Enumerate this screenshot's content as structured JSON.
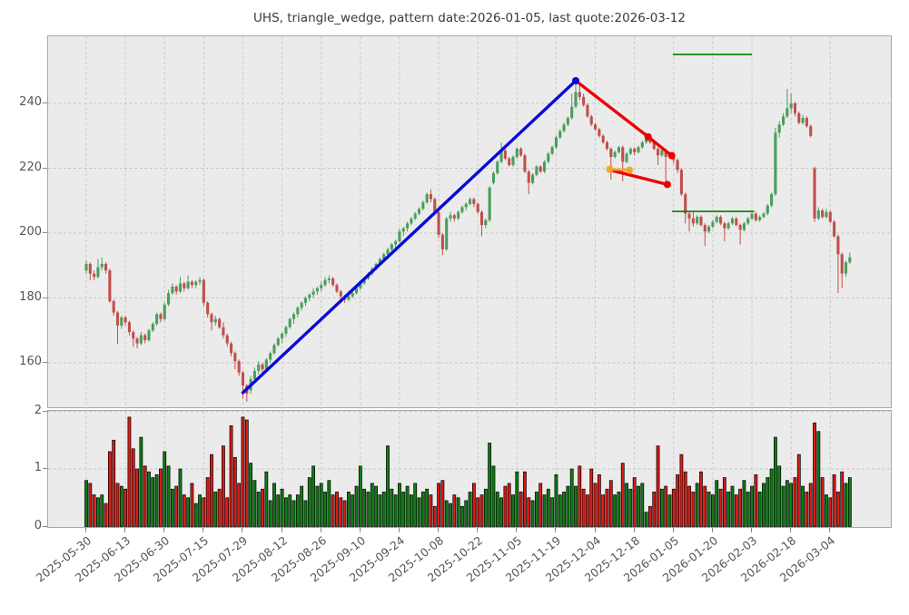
{
  "title": "UHS, triangle_wedge, pattern date:2026-01-05, last quote:2026-03-12",
  "colors": {
    "figure_bg": "#ffffff",
    "plot_bg": "#ebebeb",
    "grid": "#c6c6c6",
    "spine": "#a8a8a8",
    "tick_label": "#555555",
    "candle_up": "#4a9e5c",
    "candle_down": "#c14f4b",
    "volume_up": "#0c7d12",
    "volume_down": "#dd1a14",
    "volume_edge": "#000000",
    "trend_blue": "#0a0ad8",
    "pattern_red": "#ee0000",
    "pivot_orange": "#f5a623",
    "level_green": "#007f00"
  },
  "chart_data": {
    "type": "candlestick+volume",
    "title": "UHS, triangle_wedge, pattern date:2026-01-05, last quote:2026-03-12",
    "grid": "dashed",
    "price_axis": {
      "ticks": [
        240,
        220,
        200,
        180,
        160
      ],
      "range": [
        145.7,
        260.7
      ]
    },
    "volume_axis": {
      "ticks": [
        2,
        1,
        0
      ],
      "range": [
        0,
        2.04
      ]
    },
    "x_tick_labels": [
      "2025-05-30",
      "2025-06-13",
      "2025-06-30",
      "2025-07-15",
      "2025-07-29",
      "2025-08-12",
      "2025-08-26",
      "2025-09-10",
      "2025-09-24",
      "2025-10-08",
      "2025-10-22",
      "2025-11-05",
      "2025-11-19",
      "2025-12-04",
      "2025-12-18",
      "2026-01-05",
      "2026-01-20",
      "2026-02-03",
      "2026-02-18",
      "2026-03-04"
    ],
    "days_per_tick": 10,
    "candles": [
      [
        188.5,
        191.5,
        187.5,
        190.5
      ],
      [
        190.5,
        191,
        185.5,
        187.5
      ],
      [
        187.5,
        188.5,
        185.5,
        186.5
      ],
      [
        186.5,
        192,
        186,
        189.5
      ],
      [
        189.5,
        192.5,
        188.5,
        190.5
      ],
      [
        190.5,
        191,
        187.5,
        188.5
      ],
      [
        188.5,
        189,
        178.5,
        179
      ],
      [
        179,
        179.5,
        174.5,
        175.5
      ],
      [
        175.5,
        176,
        165.8,
        171.5
      ],
      [
        171.5,
        174.5,
        170.5,
        174
      ],
      [
        174,
        174.5,
        171.5,
        172.5
      ],
      [
        172.5,
        173,
        168.5,
        169.5
      ],
      [
        169.5,
        170,
        165,
        167.5
      ],
      [
        167.5,
        168,
        164.5,
        166
      ],
      [
        166,
        169.5,
        165.5,
        168.5
      ],
      [
        168.5,
        169,
        166,
        167
      ],
      [
        167,
        170.5,
        166.5,
        170
      ],
      [
        170,
        172.5,
        169.5,
        172
      ],
      [
        172,
        175.5,
        171.5,
        175
      ],
      [
        175,
        175.5,
        172.5,
        173.5
      ],
      [
        173.5,
        178.5,
        173,
        178
      ],
      [
        178,
        182.5,
        177.5,
        181.5
      ],
      [
        181.5,
        184.5,
        181,
        183.5
      ],
      [
        183.5,
        184,
        181,
        182
      ],
      [
        182,
        186.5,
        181.5,
        184.5
      ],
      [
        184.5,
        185,
        182,
        183
      ],
      [
        183,
        187,
        182.5,
        185
      ],
      [
        185,
        185.5,
        183,
        184
      ],
      [
        184,
        185.5,
        183,
        185
      ],
      [
        185,
        186.5,
        184,
        185.5
      ],
      [
        185.5,
        186,
        177.5,
        178.5
      ],
      [
        178.5,
        179,
        174,
        175
      ],
      [
        175,
        175.5,
        170,
        172.5
      ],
      [
        172.5,
        174.5,
        171.5,
        173.5
      ],
      [
        173.5,
        174,
        170.5,
        171
      ],
      [
        171,
        172.5,
        167.5,
        168.5
      ],
      [
        168.5,
        169,
        165,
        166
      ],
      [
        166,
        166.5,
        162,
        163
      ],
      [
        163,
        163.5,
        158,
        160.5
      ],
      [
        160.5,
        161,
        156,
        157
      ],
      [
        157,
        157.5,
        149,
        153
      ],
      [
        153,
        153.5,
        148,
        150.5
      ],
      [
        151.5,
        156,
        150.5,
        155
      ],
      [
        155,
        158.5,
        154,
        157.5
      ],
      [
        157.5,
        160.5,
        156.5,
        159.5
      ],
      [
        159.5,
        160,
        156.5,
        158
      ],
      [
        158,
        161.5,
        157.5,
        161
      ],
      [
        161,
        163.5,
        160,
        163
      ],
      [
        163,
        166,
        162.5,
        165.5
      ],
      [
        165.5,
        168,
        165,
        167.5
      ],
      [
        167.5,
        169.5,
        166,
        169
      ],
      [
        169,
        171.5,
        168,
        171
      ],
      [
        171,
        174,
        170.5,
        173.5
      ],
      [
        173.5,
        175.5,
        172,
        175
      ],
      [
        175,
        177.5,
        174,
        177
      ],
      [
        177,
        179,
        176,
        178.5
      ],
      [
        178.5,
        180.5,
        177.5,
        180
      ],
      [
        180,
        181.5,
        179,
        181
      ],
      [
        181,
        183,
        180,
        182
      ],
      [
        182,
        183.5,
        181,
        183
      ],
      [
        183,
        185,
        182,
        184
      ],
      [
        184,
        186.5,
        183.5,
        185.5
      ],
      [
        185.5,
        187,
        184.5,
        186
      ],
      [
        186,
        186.5,
        183.5,
        184
      ],
      [
        184,
        184.5,
        181.5,
        182
      ],
      [
        182,
        182.5,
        179.5,
        180.5
      ],
      [
        180.5,
        181,
        178.5,
        179.5
      ],
      [
        179.5,
        181.5,
        179,
        180.5
      ],
      [
        180.5,
        182.5,
        180,
        181.5
      ],
      [
        181.5,
        183.5,
        181,
        183
      ],
      [
        183,
        185.5,
        182.5,
        184.5
      ],
      [
        184.5,
        186.5,
        184,
        186
      ],
      [
        186,
        188,
        185.5,
        187.5
      ],
      [
        187.5,
        189.5,
        187,
        189
      ],
      [
        189,
        191,
        188.5,
        190.5
      ],
      [
        190.5,
        192.5,
        190,
        192
      ],
      [
        192,
        194,
        191.5,
        193.5
      ],
      [
        193.5,
        195.5,
        193,
        195
      ],
      [
        195,
        197,
        194.5,
        196.5
      ],
      [
        196.5,
        198,
        195.5,
        197.5
      ],
      [
        197.5,
        201.5,
        197,
        200.5
      ],
      [
        200.5,
        202,
        199,
        201.5
      ],
      [
        201.5,
        203.5,
        200.5,
        203
      ],
      [
        203,
        205,
        202.5,
        204.5
      ],
      [
        204.5,
        206.5,
        204,
        206
      ],
      [
        206,
        208,
        205.5,
        207.5
      ],
      [
        207.5,
        210,
        207,
        209.5
      ],
      [
        209.5,
        212.5,
        209,
        212
      ],
      [
        212,
        213.5,
        209.5,
        210.5
      ],
      [
        210.5,
        211,
        205.5,
        206.5
      ],
      [
        206.5,
        207,
        198.5,
        199.5
      ],
      [
        199.5,
        200,
        193.2,
        195
      ],
      [
        195,
        205,
        194.5,
        204.5
      ],
      [
        204.5,
        206.5,
        203.5,
        205.5
      ],
      [
        205.5,
        206,
        203.5,
        204.5
      ],
      [
        204.5,
        207,
        204,
        206.5
      ],
      [
        206.5,
        208.5,
        206,
        208
      ],
      [
        208,
        209.5,
        207,
        209
      ],
      [
        209,
        211,
        208.5,
        210.5
      ],
      [
        210.5,
        211,
        208,
        209
      ],
      [
        209,
        209.5,
        206,
        206.5
      ],
      [
        206.5,
        207,
        199,
        202.5
      ],
      [
        202.5,
        204.5,
        201.5,
        204
      ],
      [
        204,
        214.5,
        203.5,
        214
      ],
      [
        215.5,
        219,
        215,
        218.5
      ],
      [
        218.5,
        222.5,
        218,
        222
      ],
      [
        222,
        228,
        221.5,
        225.5
      ],
      [
        225.5,
        226,
        222.5,
        223
      ],
      [
        223,
        223.5,
        220.5,
        221
      ],
      [
        221,
        224,
        220.5,
        223.5
      ],
      [
        223.5,
        226.5,
        223,
        226
      ],
      [
        226,
        226.5,
        223.5,
        224
      ],
      [
        224,
        224.5,
        218.5,
        219
      ],
      [
        219,
        219.5,
        212,
        215.5
      ],
      [
        215.5,
        218.5,
        215,
        218
      ],
      [
        218,
        221,
        217.5,
        220.5
      ],
      [
        220.5,
        221,
        218.5,
        219
      ],
      [
        219,
        222.5,
        218.5,
        222
      ],
      [
        222,
        225,
        221.5,
        224.5
      ],
      [
        224.5,
        227,
        224,
        226.5
      ],
      [
        226.5,
        230,
        226,
        229.5
      ],
      [
        229.5,
        232,
        229,
        231.5
      ],
      [
        231.5,
        234,
        231,
        233.5
      ],
      [
        233.5,
        236,
        233,
        235.5
      ],
      [
        235.5,
        243,
        235,
        239
      ],
      [
        239,
        247,
        238.5,
        243.5
      ],
      [
        243.5,
        246,
        241,
        242
      ],
      [
        242,
        243,
        239,
        239.5
      ],
      [
        239.5,
        240,
        235.5,
        236
      ],
      [
        236,
        236.5,
        233,
        233.5
      ],
      [
        233.5,
        234,
        231.5,
        232
      ],
      [
        232,
        232.5,
        229.5,
        230
      ],
      [
        230,
        230.5,
        227.5,
        228
      ],
      [
        228,
        228.5,
        225.5,
        226
      ],
      [
        226,
        226.5,
        216.5,
        223.5
      ],
      [
        223.5,
        225.5,
        223,
        225
      ],
      [
        225,
        227,
        224.5,
        226.5
      ],
      [
        226.5,
        227,
        216,
        222
      ],
      [
        222,
        225,
        221.5,
        224.5
      ],
      [
        224.5,
        226.5,
        224,
        226
      ],
      [
        226,
        226.5,
        224,
        225
      ],
      [
        225,
        227,
        224.5,
        226.5
      ],
      [
        226.5,
        228.5,
        226,
        228
      ],
      [
        228,
        231,
        227.5,
        229.5
      ],
      [
        229.5,
        230,
        227.5,
        228
      ],
      [
        228,
        228.5,
        225.5,
        226
      ],
      [
        226,
        226.5,
        221,
        224
      ],
      [
        224,
        226,
        223.5,
        225.5
      ],
      [
        225.5,
        226,
        215.5,
        223.5
      ],
      [
        223.5,
        225,
        223,
        224.5
      ],
      [
        224.5,
        225,
        221.5,
        222.5
      ],
      [
        222.5,
        223,
        218.5,
        219.5
      ],
      [
        219.5,
        220,
        211.5,
        212
      ],
      [
        212,
        212.5,
        203,
        206
      ],
      [
        206,
        206.5,
        200.5,
        204.5
      ],
      [
        204.5,
        206.5,
        202,
        203
      ],
      [
        203,
        205.5,
        202.5,
        205
      ],
      [
        205,
        205.5,
        202,
        202.5
      ],
      [
        202.5,
        203,
        196,
        200.5
      ],
      [
        200.5,
        202.5,
        200,
        202
      ],
      [
        202,
        204,
        201.5,
        203.5
      ],
      [
        203.5,
        205.5,
        203,
        205
      ],
      [
        205,
        205.5,
        202.5,
        203
      ],
      [
        203,
        203.5,
        197.5,
        201.5
      ],
      [
        201.5,
        203.5,
        201,
        203
      ],
      [
        203,
        205,
        202.5,
        204.5
      ],
      [
        204.5,
        205,
        202,
        202.5
      ],
      [
        202.5,
        203,
        196.5,
        201
      ],
      [
        201,
        203.5,
        200.5,
        203
      ],
      [
        203,
        205,
        202.5,
        204.5
      ],
      [
        204.5,
        206.5,
        204,
        206
      ],
      [
        206,
        206.5,
        203.5,
        204
      ],
      [
        204,
        205.5,
        203.5,
        205
      ],
      [
        205,
        206.5,
        204.5,
        206
      ],
      [
        206,
        209,
        205.5,
        208.5
      ],
      [
        208.5,
        212.5,
        208,
        212
      ],
      [
        212,
        232.5,
        211.5,
        231
      ],
      [
        231,
        234.5,
        229.5,
        233.5
      ],
      [
        233.5,
        237,
        233,
        236
      ],
      [
        236,
        244.5,
        235.5,
        238.5
      ],
      [
        238.5,
        243,
        237,
        240
      ],
      [
        240,
        240.5,
        236,
        237
      ],
      [
        237,
        237.5,
        233.5,
        234
      ],
      [
        234,
        236.5,
        233.5,
        235.5
      ],
      [
        235.5,
        236,
        232.5,
        233
      ],
      [
        233,
        233.5,
        229.5,
        230
      ],
      [
        220,
        220.5,
        203.5,
        204.5
      ],
      [
        204.5,
        208,
        204,
        207
      ],
      [
        207,
        207.5,
        204.5,
        205
      ],
      [
        205,
        207.5,
        204.5,
        206.5
      ],
      [
        206.5,
        207,
        203,
        203.5
      ],
      [
        203.5,
        204,
        198.5,
        199
      ],
      [
        199,
        199.5,
        181.5,
        193.5
      ],
      [
        193.5,
        194,
        183,
        187.5
      ],
      [
        187.5,
        191.5,
        186.5,
        191
      ],
      [
        191,
        194,
        190.5,
        192.5
      ]
    ],
    "volumes": [
      0.8,
      0.75,
      0.55,
      0.5,
      0.55,
      0.4,
      1.3,
      1.5,
      0.75,
      0.7,
      0.65,
      1.9,
      1.35,
      1.0,
      1.55,
      1.05,
      0.95,
      0.85,
      0.9,
      1.0,
      1.3,
      1.05,
      0.65,
      0.7,
      1.0,
      0.55,
      0.5,
      0.75,
      0.4,
      0.55,
      0.5,
      0.85,
      1.25,
      0.6,
      0.65,
      1.4,
      0.5,
      1.75,
      1.2,
      0.75,
      1.9,
      1.85,
      1.1,
      0.8,
      0.6,
      0.65,
      0.95,
      0.45,
      0.75,
      0.55,
      0.65,
      0.5,
      0.55,
      0.45,
      0.55,
      0.7,
      0.45,
      0.85,
      1.05,
      0.7,
      0.75,
      0.6,
      0.8,
      0.55,
      0.6,
      0.5,
      0.45,
      0.6,
      0.55,
      0.7,
      1.05,
      0.65,
      0.6,
      0.75,
      0.7,
      0.55,
      0.6,
      1.4,
      0.65,
      0.55,
      0.75,
      0.6,
      0.7,
      0.55,
      0.75,
      0.5,
      0.6,
      0.65,
      0.55,
      0.35,
      0.75,
      0.8,
      0.45,
      0.4,
      0.55,
      0.5,
      0.35,
      0.45,
      0.6,
      0.75,
      0.5,
      0.55,
      0.65,
      1.45,
      1.05,
      0.6,
      0.5,
      0.7,
      0.75,
      0.55,
      0.95,
      0.6,
      0.95,
      0.5,
      0.45,
      0.6,
      0.75,
      0.55,
      0.65,
      0.5,
      0.9,
      0.55,
      0.6,
      0.7,
      1.0,
      0.7,
      1.05,
      0.65,
      0.55,
      1.0,
      0.75,
      0.9,
      0.55,
      0.65,
      0.8,
      0.55,
      0.6,
      1.1,
      0.75,
      0.65,
      0.85,
      0.7,
      0.75,
      0.25,
      0.35,
      0.6,
      1.4,
      0.65,
      0.7,
      0.55,
      0.65,
      0.9,
      1.25,
      0.95,
      0.7,
      0.6,
      0.75,
      0.95,
      0.7,
      0.6,
      0.55,
      0.8,
      0.65,
      0.85,
      0.6,
      0.7,
      0.55,
      0.65,
      0.8,
      0.6,
      0.7,
      0.9,
      0.6,
      0.75,
      0.85,
      1.0,
      1.55,
      1.05,
      0.7,
      0.8,
      0.75,
      0.85,
      1.25,
      0.7,
      0.6,
      0.75,
      1.8,
      1.65,
      0.85,
      0.55,
      0.5,
      0.9,
      0.6,
      0.95,
      0.75,
      0.85
    ],
    "overlays": {
      "blue_trendline": {
        "points": [
          [
            40,
            150.8
          ],
          [
            125,
            247
          ]
        ]
      },
      "red_upper_line": {
        "points": [
          [
            125,
            247
          ],
          [
            143.5,
            229.7
          ],
          [
            149.5,
            223.9
          ]
        ]
      },
      "red_lower_line": {
        "points": [
          [
            133.7,
            219.5
          ],
          [
            148.4,
            215.0
          ]
        ]
      },
      "orange_pivot_segment": {
        "points": [
          [
            133.7,
            219.7
          ],
          [
            138.7,
            219.4
          ]
        ]
      },
      "green_resistance": {
        "price": 255.1,
        "from_index": 149.8,
        "to_index": 170.0
      },
      "green_support": {
        "price": 206.7,
        "from_index": 149.6,
        "to_index": 170.6
      },
      "blue_markers": [
        [
          125,
          247
        ]
      ],
      "red_markers": [
        [
          143.5,
          229.7
        ],
        [
          149.5,
          223.9
        ],
        [
          148.4,
          215.0
        ]
      ],
      "orange_markers": [
        [
          133.7,
          219.7
        ],
        [
          138.7,
          219.4
        ]
      ]
    }
  }
}
